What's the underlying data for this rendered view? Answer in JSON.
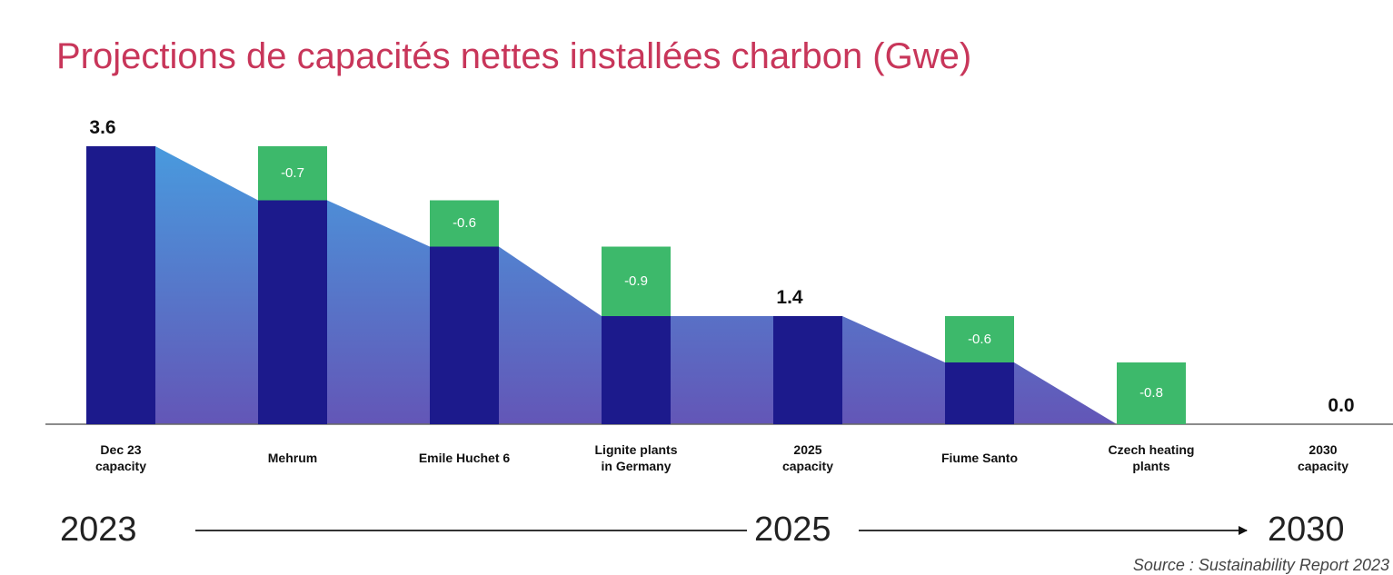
{
  "chart_data": {
    "type": "waterfall",
    "title": "Projections de capacités nettes installées charbon (Gwe)",
    "categories": [
      "Dec 23\ncapacity",
      "Mehrum",
      "Emile Huchet 6",
      "Lignite plants\nin Germany",
      "2025\ncapacity",
      "Fiume Santo",
      "Czech heating\nplants",
      "2030\ncapacity"
    ],
    "values": [
      3.6,
      -0.7,
      -0.6,
      -0.9,
      1.4,
      -0.6,
      -0.8,
      0
    ],
    "value_labels": [
      "3.6",
      "-0.7",
      "-0.6",
      "-0.9",
      "1.4",
      "-0.6",
      "-0.8",
      "0.0"
    ],
    "is_total": [
      true,
      false,
      false,
      false,
      true,
      false,
      false,
      true
    ],
    "total_color": "#1c1a8c",
    "delta_color": "#3db96b",
    "ylim": [
      0,
      4
    ],
    "timeline": [
      "2023",
      "2025",
      "2030"
    ],
    "source": "Source : Sustainability Report 2023"
  }
}
